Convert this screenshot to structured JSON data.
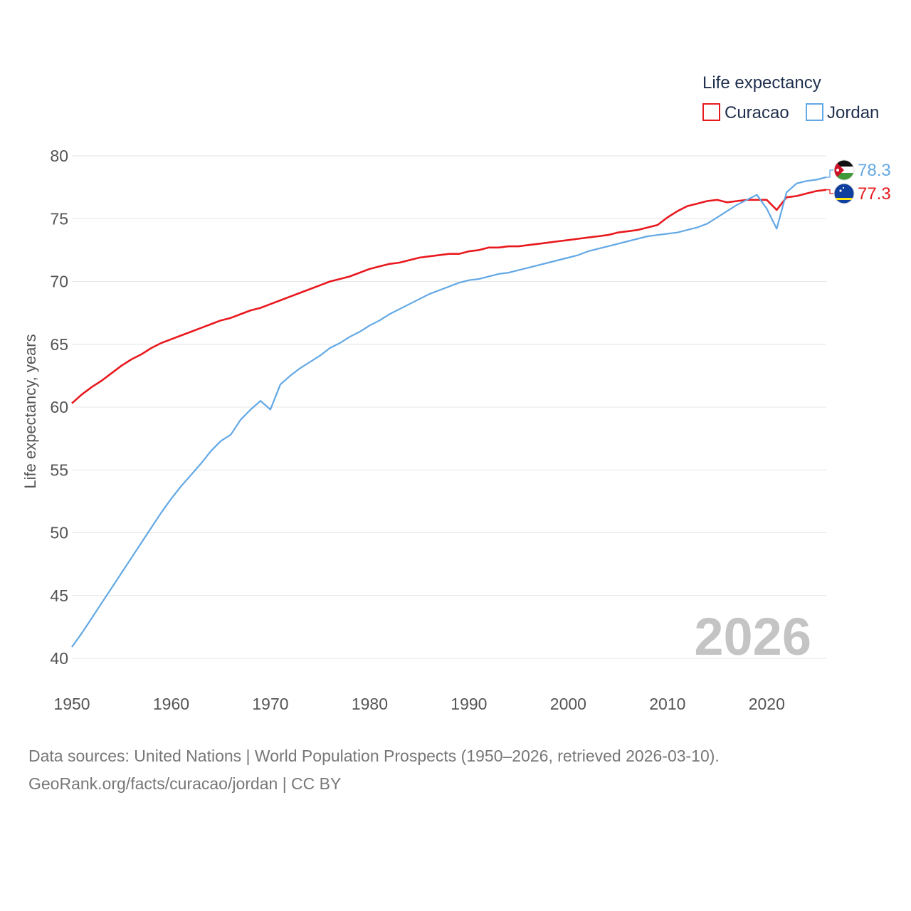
{
  "chart_data": {
    "type": "line",
    "title": "",
    "xlabel": "",
    "ylabel": "Life expectancy, years",
    "xlim": [
      1950,
      2026
    ],
    "ylim": [
      40,
      80
    ],
    "x_ticks": [
      1950,
      1960,
      1970,
      1980,
      1990,
      2000,
      2010,
      2020
    ],
    "y_ticks": [
      40,
      45,
      50,
      55,
      60,
      65,
      70,
      75,
      80
    ],
    "grid": true,
    "legend": {
      "title": "Life expectancy",
      "position": "top-right"
    },
    "year_label": "2026",
    "x": [
      1950,
      1951,
      1952,
      1953,
      1954,
      1955,
      1956,
      1957,
      1958,
      1959,
      1960,
      1961,
      1962,
      1963,
      1964,
      1965,
      1966,
      1967,
      1968,
      1969,
      1970,
      1971,
      1972,
      1973,
      1974,
      1975,
      1976,
      1977,
      1978,
      1979,
      1980,
      1981,
      1982,
      1983,
      1984,
      1985,
      1986,
      1987,
      1988,
      1989,
      1990,
      1991,
      1992,
      1993,
      1994,
      1995,
      1996,
      1997,
      1998,
      1999,
      2000,
      2001,
      2002,
      2003,
      2004,
      2005,
      2006,
      2007,
      2008,
      2009,
      2010,
      2011,
      2012,
      2013,
      2014,
      2015,
      2016,
      2017,
      2018,
      2019,
      2020,
      2021,
      2022,
      2023,
      2024,
      2025,
      2026
    ],
    "series": [
      {
        "name": "Curacao",
        "color": "#e8191e",
        "end_label": "77.3",
        "flag": "curacao-flag-icon",
        "values": [
          60.3,
          61.0,
          61.6,
          62.1,
          62.7,
          63.3,
          63.8,
          64.2,
          64.7,
          65.1,
          65.4,
          65.7,
          66.0,
          66.3,
          66.6,
          66.9,
          67.1,
          67.4,
          67.7,
          67.9,
          68.2,
          68.5,
          68.8,
          69.1,
          69.4,
          69.7,
          70.0,
          70.2,
          70.4,
          70.7,
          71.0,
          71.2,
          71.4,
          71.5,
          71.7,
          71.9,
          72.0,
          72.1,
          72.2,
          72.2,
          72.4,
          72.5,
          72.7,
          72.7,
          72.8,
          72.8,
          72.9,
          73.0,
          73.1,
          73.2,
          73.3,
          73.4,
          73.5,
          73.6,
          73.7,
          73.9,
          74.0,
          74.1,
          74.3,
          74.5,
          75.1,
          75.6,
          76.0,
          76.2,
          76.4,
          76.5,
          76.3,
          76.4,
          76.5,
          76.5,
          76.5,
          75.7,
          76.7,
          76.8,
          77.0,
          77.2,
          77.3
        ]
      },
      {
        "name": "Jordan",
        "color": "#62a8e5",
        "end_label": "78.3",
        "flag": "jordan-flag-icon",
        "values": [
          40.9,
          42.0,
          43.2,
          44.4,
          45.6,
          46.8,
          48.0,
          49.2,
          50.4,
          51.6,
          52.7,
          53.7,
          54.6,
          55.5,
          56.5,
          57.3,
          57.8,
          59.0,
          59.8,
          60.5,
          59.8,
          61.8,
          62.5,
          63.1,
          63.6,
          64.1,
          64.7,
          65.1,
          65.6,
          66.0,
          66.5,
          66.9,
          67.4,
          67.8,
          68.2,
          68.6,
          69.0,
          69.3,
          69.6,
          69.9,
          70.1,
          70.2,
          70.4,
          70.6,
          70.7,
          70.9,
          71.1,
          71.3,
          71.5,
          71.7,
          71.9,
          72.1,
          72.4,
          72.6,
          72.8,
          73.0,
          73.2,
          73.4,
          73.6,
          73.7,
          73.8,
          73.9,
          74.1,
          74.3,
          74.6,
          75.1,
          75.6,
          76.1,
          76.5,
          76.9,
          75.8,
          74.2,
          77.1,
          77.8,
          78.0,
          78.1,
          78.3
        ]
      }
    ]
  },
  "footer": {
    "line1": "Data sources: United Nations | World Population Prospects (1950–2026, retrieved 2026-03-10).",
    "line2": "GeoRank.org/facts/curacao/jordan | CC BY"
  }
}
